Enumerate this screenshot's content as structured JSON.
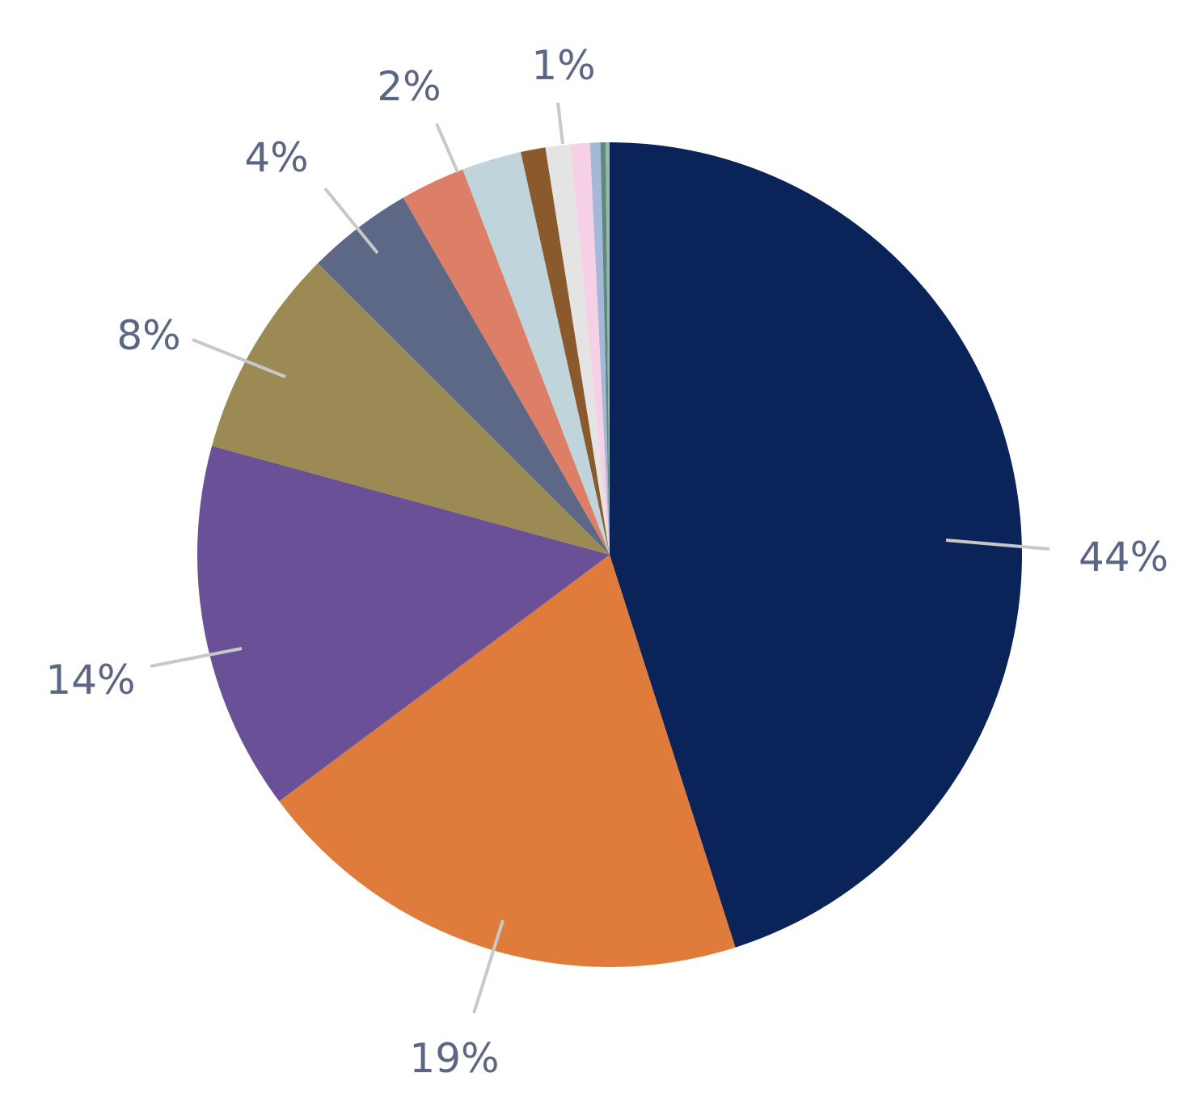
{
  "chart_data": {
    "type": "pie",
    "start_angle_deg": 0,
    "direction": "clockwise",
    "slices": [
      {
        "value": 44.3,
        "label": "44%",
        "color": "#0a2359"
      },
      {
        "value": 19.4,
        "label": "19%",
        "color": "#df7b3b"
      },
      {
        "value": 14.2,
        "label": "14%",
        "color": "#6a5096"
      },
      {
        "value": 8.1,
        "label": "8%",
        "color": "#9b8a54"
      },
      {
        "value": 4.1,
        "label": "4%",
        "color": "#5d6886"
      },
      {
        "value": 2.5,
        "label": "2%",
        "color": "#dd7e67"
      },
      {
        "value": 2.3,
        "label": "",
        "color": "#bfd4db"
      },
      {
        "value": 0.95,
        "label": "",
        "color": "#8a5a2d"
      },
      {
        "value": 0.95,
        "label": "1%",
        "color": "#e4e4e4"
      },
      {
        "value": 0.75,
        "label": "",
        "color": "#f6d1e6"
      },
      {
        "value": 0.4,
        "label": "",
        "color": "#a4b8d9"
      },
      {
        "value": 0.2,
        "label": "",
        "color": "#5f8a7b"
      },
      {
        "value": 0.15,
        "label": "",
        "color": "#9ab6ad"
      }
    ]
  }
}
